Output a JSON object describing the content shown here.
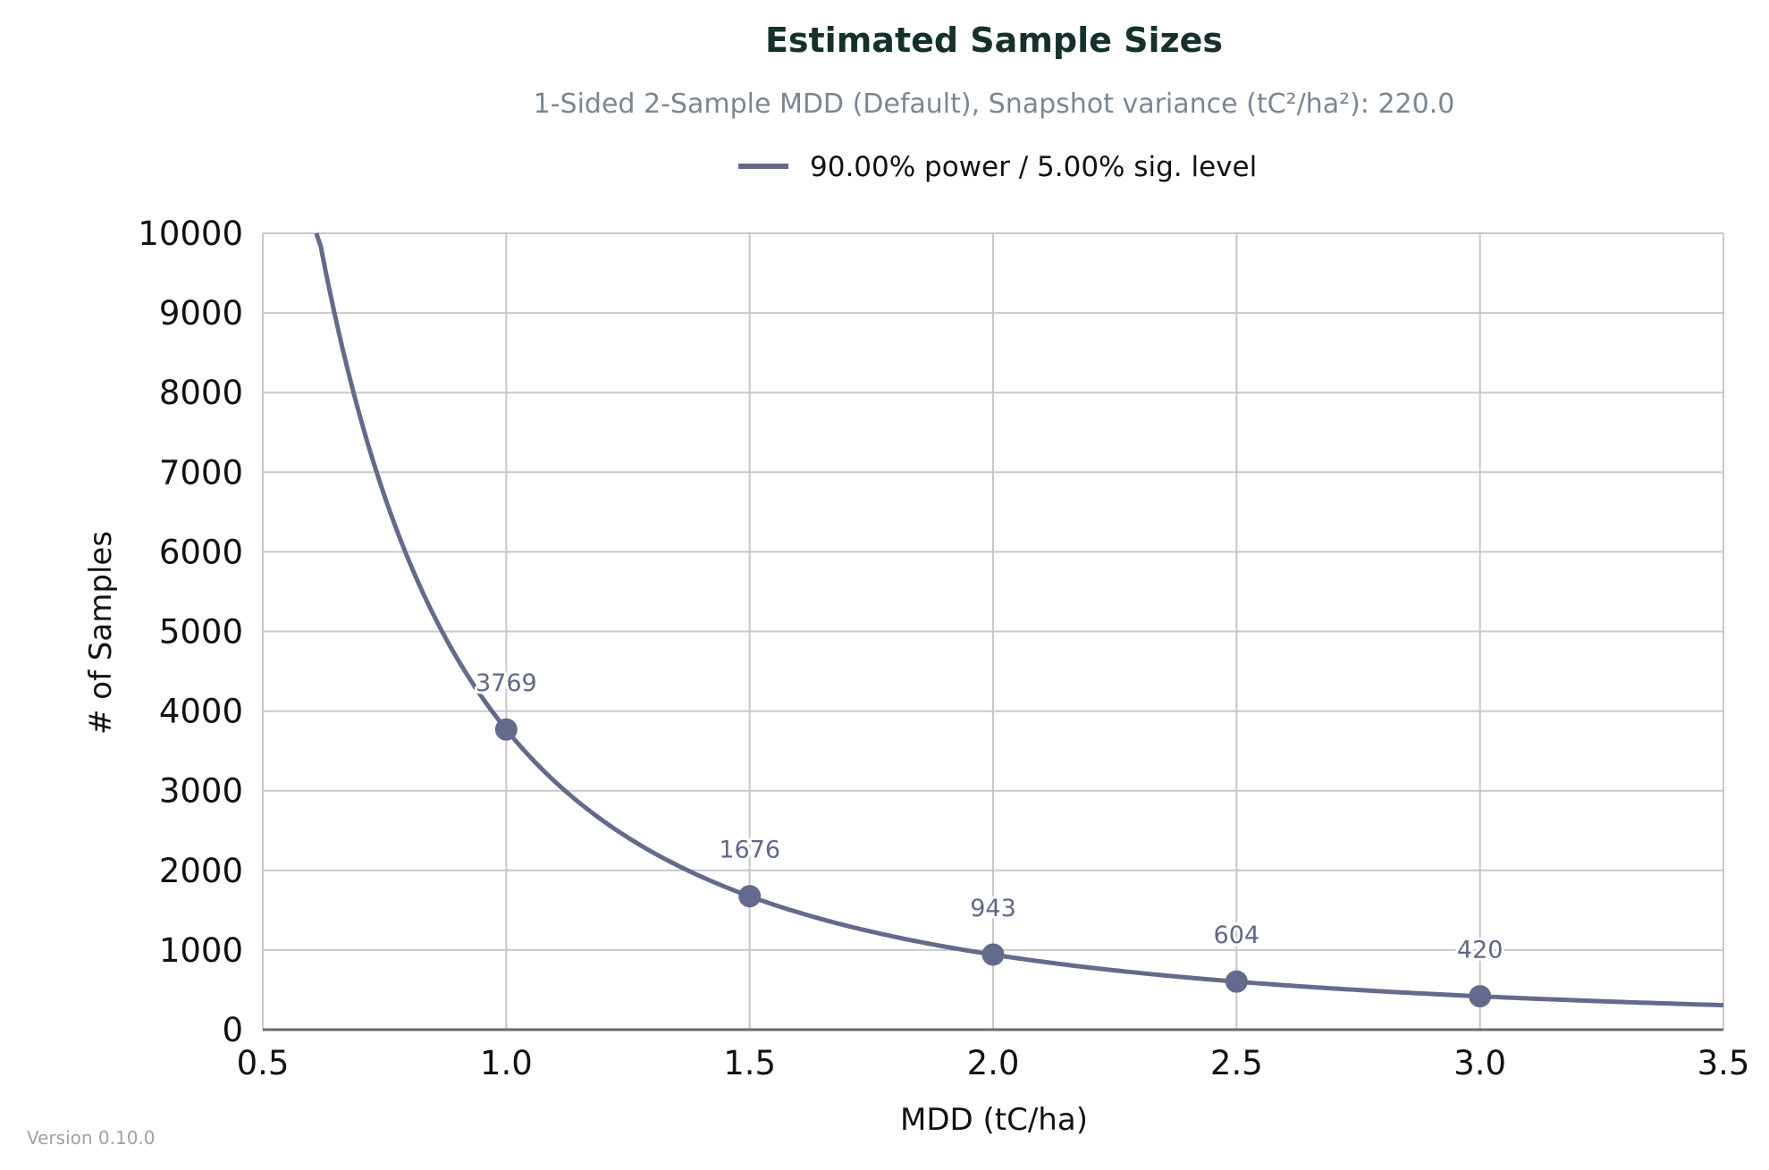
{
  "version_text": "Version 0.10.0",
  "colors": {
    "series": "#646a8c",
    "grid": "#c8c8c8",
    "axis": "#6b6b6b",
    "title": "#16302b",
    "subtitle": "#7a8694"
  },
  "chart_data": {
    "type": "line",
    "title": "Estimated Sample Sizes",
    "subtitle": "1-Sided 2-Sample MDD (Default), Snapshot variance (tC²/ha²): 220.0",
    "xlabel": "MDD (tC/ha)",
    "ylabel": "# of Samples",
    "xlim": [
      0.5,
      3.5
    ],
    "ylim": [
      0,
      10000
    ],
    "x_ticks": [
      "0.5",
      "1.0",
      "1.5",
      "2.0",
      "2.5",
      "3.0",
      "3.5"
    ],
    "y_ticks": [
      "0",
      "1000",
      "2000",
      "3000",
      "4000",
      "5000",
      "6000",
      "7000",
      "8000",
      "9000",
      "10000"
    ],
    "grid": true,
    "legend_position": "top-center",
    "series": [
      {
        "name": "90.00% power / 5.00% sig. level",
        "curve_constant": 3769,
        "curve_x_range": [
          0.61,
          3.5
        ],
        "points": [
          {
            "x": 1.0,
            "y": 3769,
            "label": "3769"
          },
          {
            "x": 1.5,
            "y": 1676,
            "label": "1676"
          },
          {
            "x": 2.0,
            "y": 943,
            "label": "943"
          },
          {
            "x": 2.5,
            "y": 604,
            "label": "604"
          },
          {
            "x": 3.0,
            "y": 420,
            "label": "420"
          }
        ]
      }
    ]
  }
}
